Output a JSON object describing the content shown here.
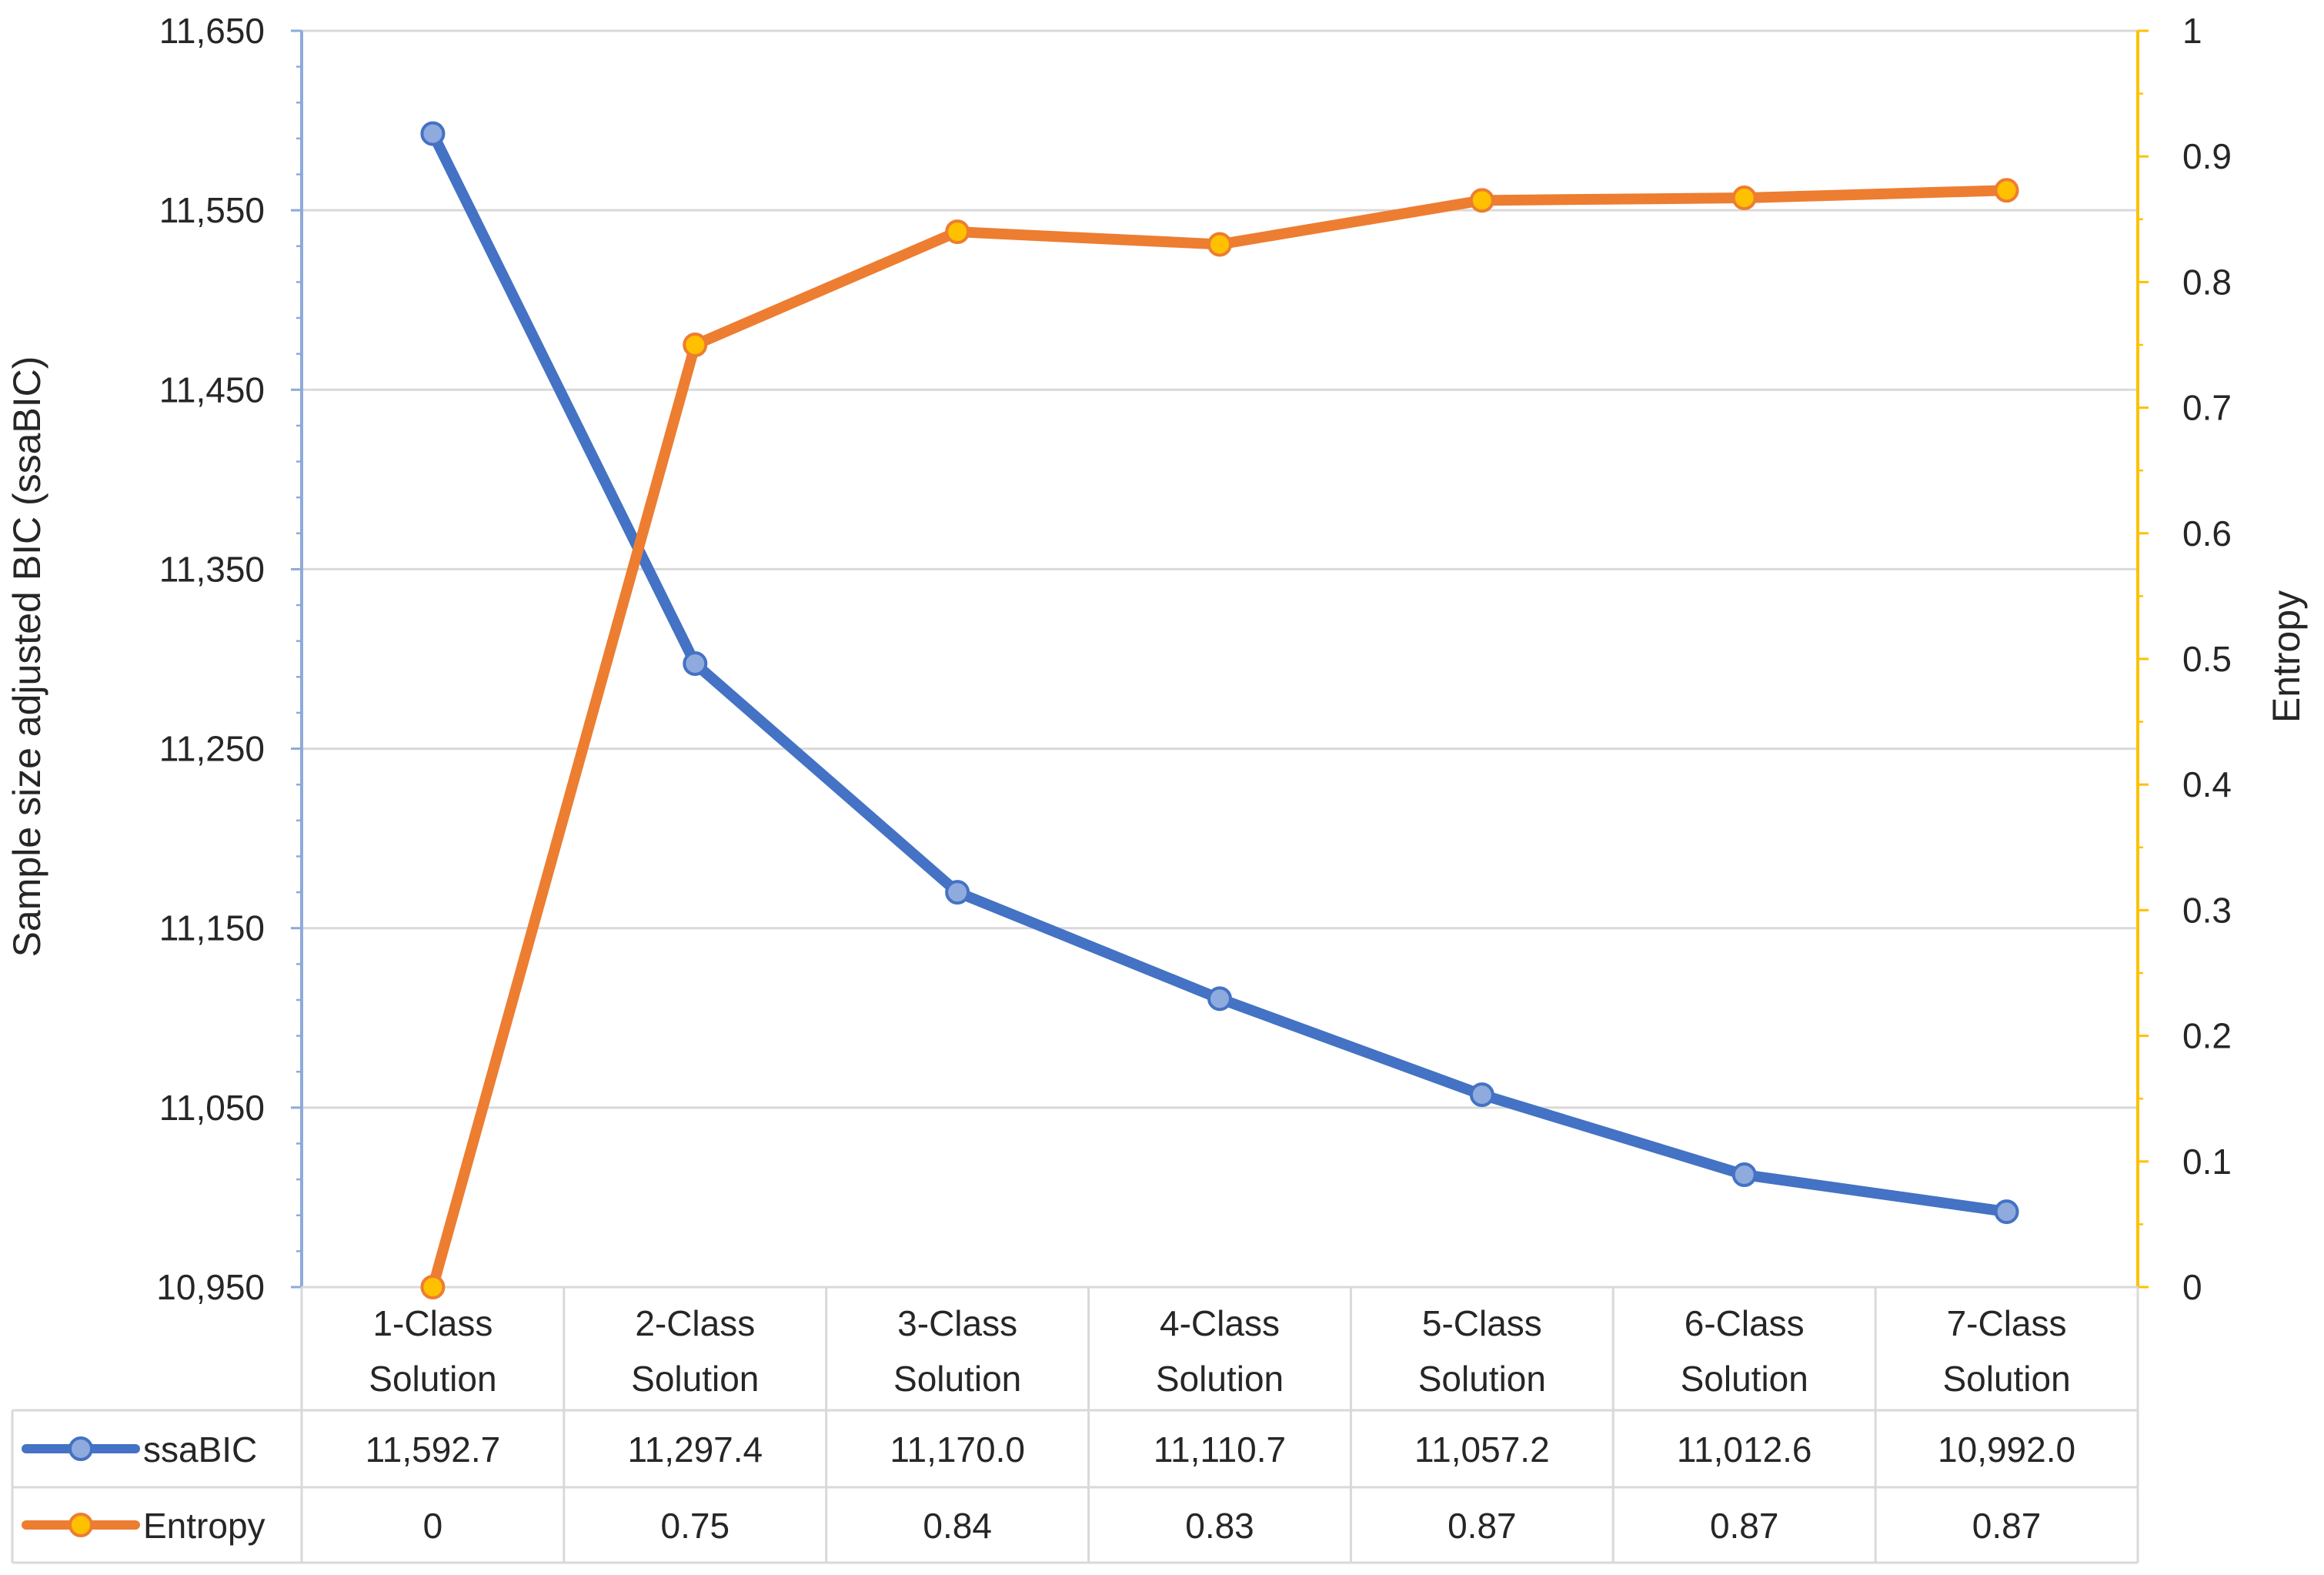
{
  "chart_data": {
    "type": "line",
    "title": "",
    "categories": [
      [
        "1-Class",
        "Solution"
      ],
      [
        "2-Class",
        "Solution"
      ],
      [
        "3-Class",
        "Solution"
      ],
      [
        "4-Class",
        "Solution"
      ],
      [
        "5-Class",
        "Solution"
      ],
      [
        "6-Class",
        "Solution"
      ],
      [
        "7-Class",
        "Solution"
      ]
    ],
    "y_left": {
      "label": "Sample size adjusted BIC (ssaBIC)",
      "range": [
        10950,
        11650
      ],
      "ticks": [
        11650,
        11550,
        11450,
        11350,
        11250,
        11150,
        11050,
        10950
      ],
      "tick_labels": [
        "11,650",
        "11,550",
        "11,450",
        "11,350",
        "11,250",
        "11,150",
        "11,050",
        "10,950"
      ],
      "axis_color": "#8eaadb"
    },
    "y_right": {
      "label": "Entropy",
      "range": [
        0,
        1
      ],
      "ticks": [
        1,
        0.9,
        0.8,
        0.7,
        0.6,
        0.5,
        0.4,
        0.3,
        0.2,
        0.1,
        0
      ],
      "tick_labels": [
        "1",
        "0.9",
        "0.8",
        "0.7",
        "0.6",
        "0.5",
        "0.4",
        "0.3",
        "0.2",
        "0.1",
        "0"
      ],
      "axis_color": "#ffc000"
    },
    "grid": true,
    "series": [
      {
        "name": "ssaBIC",
        "axis": "left",
        "values": [
          11592.7,
          11297.4,
          11170.0,
          11110.7,
          11057.2,
          11012.6,
          10992.0
        ],
        "line_color": "#4472c4",
        "marker_fill": "#8faadc",
        "marker_stroke": "#4472c4"
      },
      {
        "name": "Entropy",
        "axis": "right",
        "values": [
          0,
          0.75,
          0.84,
          0.83,
          0.865,
          0.867,
          0.873
        ],
        "line_color": "#ed7d31",
        "marker_fill": "#ffc000",
        "marker_stroke": "#ed7d31"
      }
    ],
    "data_table": {
      "rows": [
        {
          "series": "ssaBIC",
          "cells": [
            "11,592.7",
            "11,297.4",
            "11,170.0",
            "11,110.7",
            "11,057.2",
            "11,012.6",
            "10,992.0"
          ]
        },
        {
          "series": "Entropy",
          "cells": [
            "0",
            "0.75",
            "0.84",
            "0.83",
            "0.87",
            "0.87",
            "0.87"
          ]
        }
      ],
      "border_color": "#d9d9d9"
    },
    "gridline_color": "#d9d9d9",
    "text_color": "#262626"
  }
}
